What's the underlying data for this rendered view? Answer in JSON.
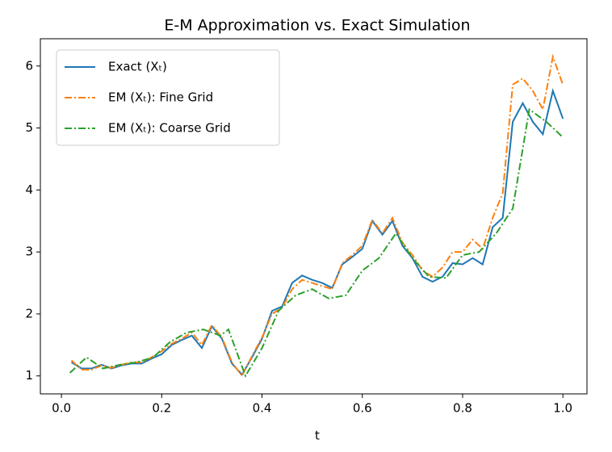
{
  "chart_data": {
    "type": "line",
    "title": "E-M Approximation vs. Exact Simulation",
    "xlabel": "t",
    "xlim": [
      -0.042,
      1.048
    ],
    "ylim": [
      0.71,
      6.44
    ],
    "xticks": [
      {
        "value": 0,
        "label": "0.0"
      },
      0.2,
      0.4,
      0.6,
      0.8,
      {
        "value": 1,
        "label": "1.0"
      }
    ],
    "yticks": [
      1,
      2,
      3,
      4,
      5,
      6
    ],
    "legend": "upper-left",
    "x": [
      0.02,
      0.04,
      0.06,
      0.08,
      0.1,
      0.12,
      0.14,
      0.16,
      0.18,
      0.2,
      0.22,
      0.24,
      0.26,
      0.28,
      0.3,
      0.32,
      0.34,
      0.36,
      0.38,
      0.4,
      0.42,
      0.44,
      0.46,
      0.48,
      0.5,
      0.52,
      0.54,
      0.56,
      0.58,
      0.6,
      0.62,
      0.64,
      0.66,
      0.68,
      0.7,
      0.72,
      0.74,
      0.76,
      0.78,
      0.8,
      0.82,
      0.84,
      0.86,
      0.88,
      0.9,
      0.92,
      0.94,
      0.96,
      0.98,
      1.0
    ],
    "series": [
      {
        "name": "Exact (Xₜ)",
        "color": "#1f77b4",
        "dash": "solid",
        "values": [
          1.22,
          1.12,
          1.12,
          1.18,
          1.12,
          1.17,
          1.2,
          1.2,
          1.28,
          1.35,
          1.5,
          1.58,
          1.65,
          1.45,
          1.8,
          1.6,
          1.2,
          1.02,
          1.3,
          1.6,
          2.05,
          2.12,
          2.5,
          2.62,
          2.55,
          2.5,
          2.42,
          2.8,
          2.92,
          3.05,
          3.5,
          3.28,
          3.5,
          3.1,
          2.9,
          2.6,
          2.52,
          2.6,
          2.82,
          2.8,
          2.9,
          2.8,
          3.4,
          3.55,
          5.1,
          5.4,
          5.1,
          4.9,
          5.6,
          5.15
        ]
      },
      {
        "name": "EM (Xₜ): Fine Grid",
        "color": "#ff7f0e",
        "dash": "dashdot",
        "values": [
          1.25,
          1.1,
          1.1,
          1.17,
          1.13,
          1.18,
          1.22,
          1.22,
          1.3,
          1.4,
          1.52,
          1.6,
          1.7,
          1.5,
          1.82,
          1.62,
          1.22,
          1.0,
          1.32,
          1.62,
          2.0,
          2.1,
          2.4,
          2.55,
          2.5,
          2.45,
          2.4,
          2.82,
          2.95,
          3.1,
          3.52,
          3.3,
          3.55,
          3.15,
          2.95,
          2.7,
          2.6,
          2.75,
          3.0,
          3.0,
          3.2,
          3.05,
          3.55,
          3.95,
          5.7,
          5.8,
          5.6,
          5.3,
          6.15,
          5.7
        ]
      },
      {
        "name": "EM (Xₜ): Coarse Grid",
        "color": "#2ca02c",
        "dash": "dashdot",
        "x": [
          0.017,
          0.05,
          0.083,
          0.117,
          0.15,
          0.183,
          0.217,
          0.25,
          0.283,
          0.317,
          0.333,
          0.367,
          0.4,
          0.433,
          0.467,
          0.5,
          0.533,
          0.567,
          0.6,
          0.633,
          0.667,
          0.7,
          0.733,
          0.767,
          0.8,
          0.833,
          0.867,
          0.9,
          0.933,
          0.967,
          1.0
        ],
        "values": [
          1.05,
          1.3,
          1.12,
          1.18,
          1.22,
          1.3,
          1.55,
          1.7,
          1.75,
          1.65,
          1.75,
          1.0,
          1.45,
          2.05,
          2.3,
          2.4,
          2.25,
          2.3,
          2.7,
          2.9,
          3.3,
          2.9,
          2.6,
          2.58,
          2.95,
          3.0,
          3.3,
          3.7,
          5.3,
          5.1,
          4.85
        ]
      }
    ]
  }
}
